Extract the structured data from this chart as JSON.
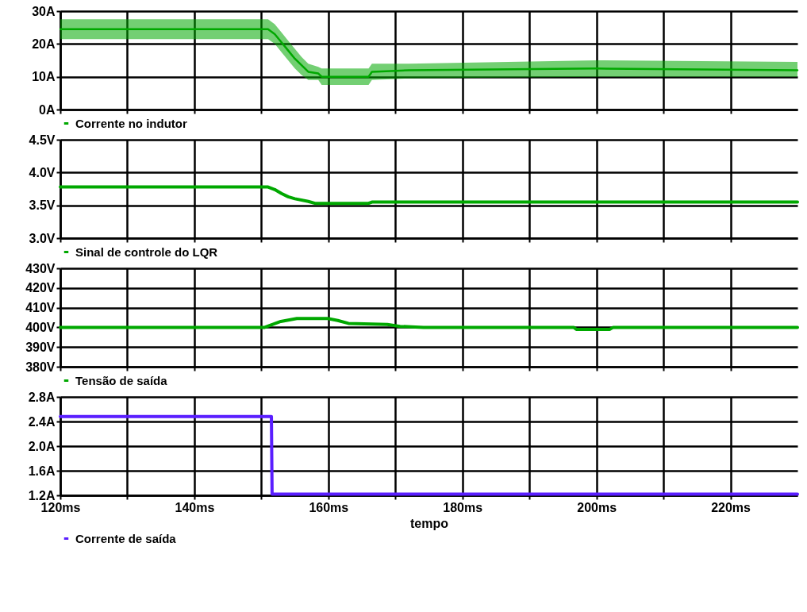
{
  "chart_data": [
    {
      "type": "line",
      "x": [
        120,
        151,
        152,
        153,
        154,
        155,
        156,
        157,
        158.5,
        159,
        166,
        166.5,
        172,
        200,
        230
      ],
      "xlim": [
        120,
        230
      ],
      "xticks": [
        {
          "value": 120,
          "label": null
        },
        {
          "value": 130,
          "label": null
        },
        {
          "value": 140,
          "label": null
        },
        {
          "value": 150,
          "label": null
        },
        {
          "value": 160,
          "label": null
        },
        {
          "value": 170,
          "label": null
        },
        {
          "value": 180,
          "label": null
        },
        {
          "value": 190,
          "label": null
        },
        {
          "value": 200,
          "label": null
        },
        {
          "value": 210,
          "label": null
        },
        {
          "value": 220,
          "label": null
        }
      ],
      "ylim": [
        0,
        30
      ],
      "yticks": [
        {
          "value": 0,
          "label": "0A"
        },
        {
          "value": 10,
          "label": "10A"
        },
        {
          "value": 20,
          "label": "20A"
        },
        {
          "value": 30,
          "label": "30A"
        }
      ],
      "grid": true,
      "legend": "bottom",
      "tick_labels": "y",
      "series": [
        {
          "name": "Corrente no indutor",
          "color": "#00a800",
          "values": [
            24.5,
            24.5,
            23,
            20.5,
            18,
            15.5,
            13.5,
            11.5,
            11,
            10,
            10,
            11.5,
            12,
            12.5,
            12
          ],
          "lower": [
            21.5,
            21.5,
            20,
            17.5,
            15,
            12.5,
            10.5,
            9,
            9,
            7.5,
            7.5,
            9,
            9.5,
            10,
            10
          ],
          "upper": [
            27.5,
            27.5,
            26,
            23.5,
            21,
            18.5,
            16,
            14,
            13,
            12.5,
            12.5,
            14,
            14,
            15,
            14.5
          ]
        }
      ]
    },
    {
      "type": "line",
      "x": [
        120,
        151,
        152,
        153,
        154,
        155,
        157,
        158,
        166,
        166.5,
        230
      ],
      "xlim": [
        120,
        230
      ],
      "xticks": [
        {
          "value": 120,
          "label": null
        },
        {
          "value": 130,
          "label": null
        },
        {
          "value": 140,
          "label": null
        },
        {
          "value": 150,
          "label": null
        },
        {
          "value": 160,
          "label": null
        },
        {
          "value": 170,
          "label": null
        },
        {
          "value": 180,
          "label": null
        },
        {
          "value": 190,
          "label": null
        },
        {
          "value": 200,
          "label": null
        },
        {
          "value": 210,
          "label": null
        },
        {
          "value": 220,
          "label": null
        }
      ],
      "ylim": [
        3.0,
        4.5
      ],
      "yticks": [
        {
          "value": 3.0,
          "label": "3.0V"
        },
        {
          "value": 3.5,
          "label": "3.5V"
        },
        {
          "value": 4.0,
          "label": "4.0V"
        },
        {
          "value": 4.5,
          "label": "4.5V"
        }
      ],
      "grid": true,
      "legend": "bottom",
      "tick_labels": "y",
      "series": [
        {
          "name": "Sinal de controle do LQR",
          "color": "#00a800",
          "values": [
            3.78,
            3.78,
            3.74,
            3.68,
            3.63,
            3.6,
            3.56,
            3.53,
            3.53,
            3.55,
            3.55
          ]
        }
      ]
    },
    {
      "type": "line",
      "x": [
        120,
        150.5,
        152.9,
        155.3,
        159.9,
        161.4,
        163,
        168.8,
        170.7,
        174.2,
        196.6,
        197,
        202,
        202.5,
        230
      ],
      "xlim": [
        120,
        230
      ],
      "xticks": [
        {
          "value": 120,
          "label": null
        },
        {
          "value": 130,
          "label": null
        },
        {
          "value": 140,
          "label": null
        },
        {
          "value": 150,
          "label": null
        },
        {
          "value": 160,
          "label": null
        },
        {
          "value": 170,
          "label": null
        },
        {
          "value": 180,
          "label": null
        },
        {
          "value": 190,
          "label": null
        },
        {
          "value": 200,
          "label": null
        },
        {
          "value": 210,
          "label": null
        },
        {
          "value": 220,
          "label": null
        }
      ],
      "ylim": [
        380,
        430
      ],
      "yticks": [
        {
          "value": 380,
          "label": "380V"
        },
        {
          "value": 390,
          "label": "390V"
        },
        {
          "value": 400,
          "label": "400V"
        },
        {
          "value": 410,
          "label": "410V"
        },
        {
          "value": 420,
          "label": "420V"
        },
        {
          "value": 430,
          "label": "430V"
        }
      ],
      "grid": true,
      "legend": "bottom",
      "tick_labels": "y",
      "series": [
        {
          "name": "Tensão de saída",
          "color": "#00a800",
          "values": [
            400,
            400,
            403,
            404.5,
            404.5,
            403.5,
            402,
            401.5,
            400.5,
            400,
            400,
            399,
            399,
            400,
            400
          ]
        }
      ]
    },
    {
      "type": "line",
      "x": [
        120,
        151.5,
        151.6,
        230
      ],
      "xlim": [
        120,
        230
      ],
      "xticks": [
        {
          "value": 120,
          "label": "120ms"
        },
        {
          "value": 130,
          "label": null
        },
        {
          "value": 140,
          "label": "140ms"
        },
        {
          "value": 150,
          "label": null
        },
        {
          "value": 160,
          "label": "160ms"
        },
        {
          "value": 170,
          "label": null
        },
        {
          "value": 180,
          "label": "180ms"
        },
        {
          "value": 190,
          "label": null
        },
        {
          "value": 200,
          "label": "200ms"
        },
        {
          "value": 210,
          "label": null
        },
        {
          "value": 220,
          "label": "220ms"
        }
      ],
      "ylim": [
        1.2,
        2.8
      ],
      "yticks": [
        {
          "value": 1.2,
          "label": "1.2A"
        },
        {
          "value": 1.6,
          "label": "1.6A"
        },
        {
          "value": 2.0,
          "label": "2.0A"
        },
        {
          "value": 2.4,
          "label": "2.4A"
        },
        {
          "value": 2.8,
          "label": "2.8A"
        }
      ],
      "grid": true,
      "legend": "bottom",
      "xlabel": "tempo",
      "series": [
        {
          "name": "Corrente de saída",
          "color": "#5a1eff",
          "values": [
            2.48,
            2.48,
            1.22,
            1.22
          ]
        }
      ]
    }
  ]
}
